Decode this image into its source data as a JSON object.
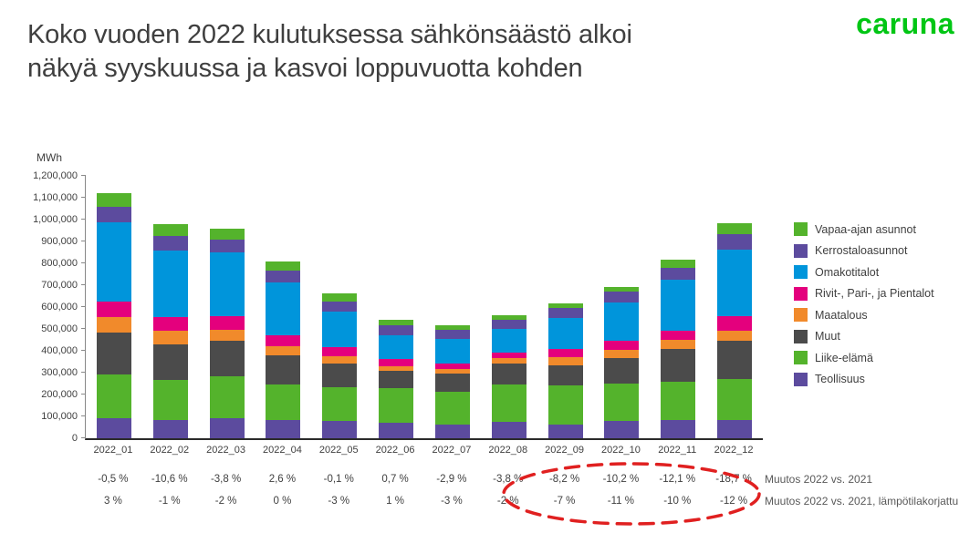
{
  "header": {
    "title_line1": "Koko vuoden 2022 kulutuksessa sähkönsäästö alkoi",
    "title_line2": "näkyä syyskuussa ja kasvoi loppuvuotta kohden",
    "logo_text": "caruna"
  },
  "colors": {
    "logo_green": "#00C614",
    "highlight_red": "#E02020",
    "text_dark": "#3F3F3F"
  },
  "chart_data": {
    "type": "bar",
    "stacked": true,
    "ylabel": "MWh",
    "ylim": [
      0,
      1200000
    ],
    "ytick_step": 100000,
    "grid": false,
    "legend_position": "right",
    "categories": [
      "2022_01",
      "2022_02",
      "2022_03",
      "2022_04",
      "2022_05",
      "2022_06",
      "2022_07",
      "2022_08",
      "2022_09",
      "2022_10",
      "2022_11",
      "2022_12"
    ],
    "series": [
      {
        "name": "Teollisuus",
        "color": "#5C4B9E",
        "values": [
          92000,
          85000,
          93000,
          82000,
          78000,
          71000,
          61000,
          75000,
          64000,
          78000,
          82000,
          85000
        ]
      },
      {
        "name": "Liike-elämä",
        "color": "#54B32C",
        "values": [
          198000,
          181000,
          190000,
          165000,
          155000,
          160000,
          151000,
          170000,
          177000,
          174000,
          177000,
          184000
        ]
      },
      {
        "name": "Muut",
        "color": "#4B4B4B",
        "values": [
          195000,
          165000,
          162000,
          134000,
          110000,
          78000,
          85000,
          95000,
          92000,
          113000,
          148000,
          177000
        ]
      },
      {
        "name": "Maatalous",
        "color": "#F18A2B",
        "values": [
          68000,
          61000,
          51000,
          42000,
          31000,
          21000,
          21000,
          25000,
          40000,
          38000,
          42000,
          47000
        ]
      },
      {
        "name": "Rivit-, Pari-, ja Pientalot",
        "color": "#E4007D",
        "values": [
          71000,
          61000,
          62000,
          50000,
          42000,
          33000,
          25000,
          28000,
          35000,
          42000,
          42000,
          64000
        ]
      },
      {
        "name": "Omakotitalot",
        "color": "#0095DB",
        "values": [
          364000,
          307000,
          294000,
          240000,
          163000,
          109000,
          113000,
          106000,
          144000,
          177000,
          236000,
          307000
        ]
      },
      {
        "name": "Kerrostaloasunnot",
        "color": "#5C4B9E",
        "values": [
          70000,
          64000,
          56000,
          54000,
          47000,
          47000,
          42000,
          42000,
          42000,
          49000,
          51000,
          68000
        ]
      },
      {
        "name": "Vapaa-ajan asunnot",
        "color": "#54B32C",
        "values": [
          62000,
          56000,
          50000,
          42000,
          35000,
          21000,
          21000,
          21000,
          21000,
          23000,
          38000,
          50000
        ]
      }
    ],
    "legend_top_to_bottom": [
      "Vapaa-ajan asunnot",
      "Kerrostaloasunnot",
      "Omakotitalot",
      "Rivit-, Pari-, ja Pientalot",
      "Maatalous",
      "Muut",
      "Liike-elämä",
      "Teollisuus"
    ]
  },
  "annotations": {
    "muutos_label": "Muutos 2022 vs. 2021",
    "muutos_korjattu_label": "Muutos 2022 vs. 2021, lämpötilakorjattu",
    "muutos_values": [
      "-0,5 %",
      "-10,6 %",
      "-3,8 %",
      "2,6 %",
      "-0,1 %",
      "0,7 %",
      "-2,9 %",
      "-3,8 %",
      "-8,2 %",
      "-10,2 %",
      "-12,1 %",
      "-18,7 %"
    ],
    "muutos_korjattu_values": [
      "3 %",
      "-1 %",
      "-2 %",
      "0 %",
      "-3 %",
      "1 %",
      "-3 %",
      "-2 %",
      "-7 %",
      "-11 %",
      "-10 %",
      "-12 %"
    ],
    "highlighted_categories": [
      "2022_09",
      "2022_10",
      "2022_11",
      "2022_12"
    ]
  }
}
